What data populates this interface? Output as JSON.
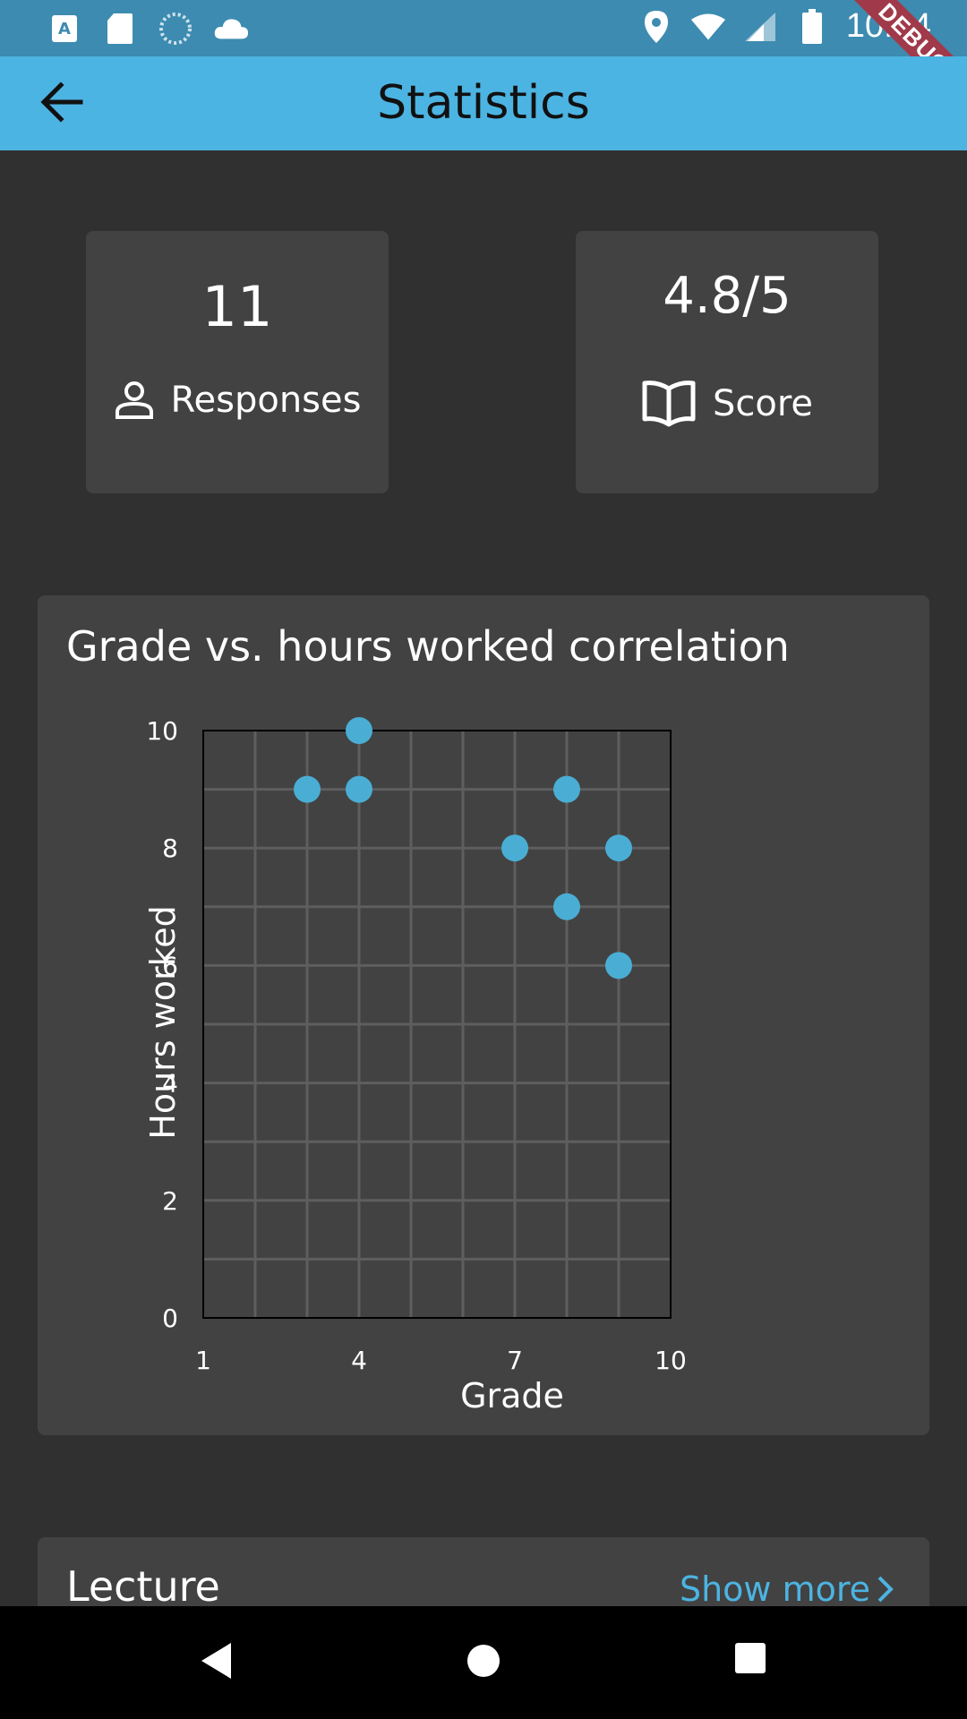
{
  "status_bar": {
    "time": "10:04",
    "debug_label": "DEBUG",
    "left_icons": [
      "text-a-icon",
      "sd-card-icon",
      "sync-icon",
      "cloud-icon"
    ],
    "right_icons": [
      "location-icon",
      "wifi-icon",
      "signal-icon",
      "battery-icon"
    ]
  },
  "app_bar": {
    "title": "Statistics",
    "back_icon": "arrow-back-icon",
    "background": "#4cb4e2"
  },
  "stats": [
    {
      "value": "11",
      "label": "Responses",
      "icon": "person-icon"
    },
    {
      "value": "4.8/5",
      "label": "Score",
      "icon": "book-icon"
    }
  ],
  "chart_card": {
    "title": "Grade vs. hours worked correlation"
  },
  "chart_data": {
    "type": "scatter",
    "title": "Grade vs. hours worked correlation",
    "xlabel": "Grade",
    "ylabel": "Hours worked",
    "xlim": [
      1,
      10
    ],
    "ylim": [
      0,
      10
    ],
    "xticks": [
      1,
      4,
      7,
      10
    ],
    "yticks": [
      0,
      2,
      4,
      6,
      8,
      10
    ],
    "grid": true,
    "point_color": "#4aaed4",
    "points": [
      {
        "x": 3,
        "y": 9
      },
      {
        "x": 4,
        "y": 10
      },
      {
        "x": 4,
        "y": 9
      },
      {
        "x": 7,
        "y": 8
      },
      {
        "x": 8,
        "y": 9
      },
      {
        "x": 8,
        "y": 7
      },
      {
        "x": 9,
        "y": 8
      },
      {
        "x": 9,
        "y": 6
      }
    ]
  },
  "lecture_card": {
    "title": "Lecture",
    "show_more": "Show more"
  },
  "nav_bar": {
    "buttons": [
      "back-triangle-icon",
      "home-circle-icon",
      "recents-square-icon"
    ]
  }
}
